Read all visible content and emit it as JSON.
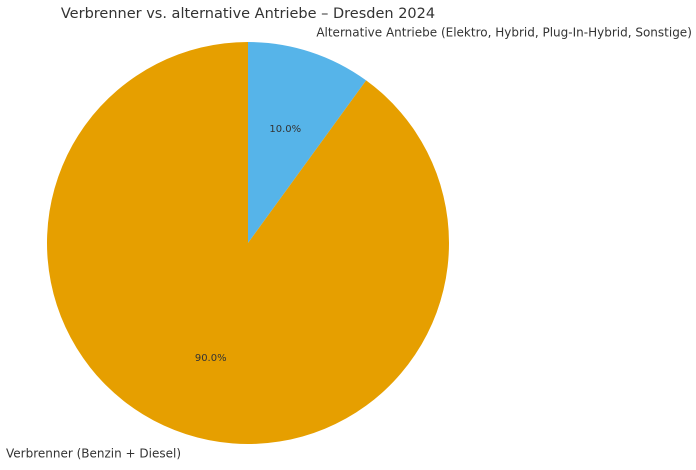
{
  "chart_data": {
    "type": "pie",
    "title": "Verbrenner vs. alternative Antriebe – Dresden 2024",
    "slices": [
      {
        "label": "Alternative Antriebe (Elektro, Hybrid, Plug-In-Hybrid, Sonstige)",
        "value": 10.0,
        "pct_label": "10.0%",
        "color": "#56b4e9"
      },
      {
        "label": "Verbrenner (Benzin + Diesel)",
        "value": 90.0,
        "pct_label": "90.0%",
        "color": "#e69f00"
      }
    ],
    "start_angle": "top",
    "direction": "clockwise",
    "grid": false,
    "legend": "none"
  }
}
